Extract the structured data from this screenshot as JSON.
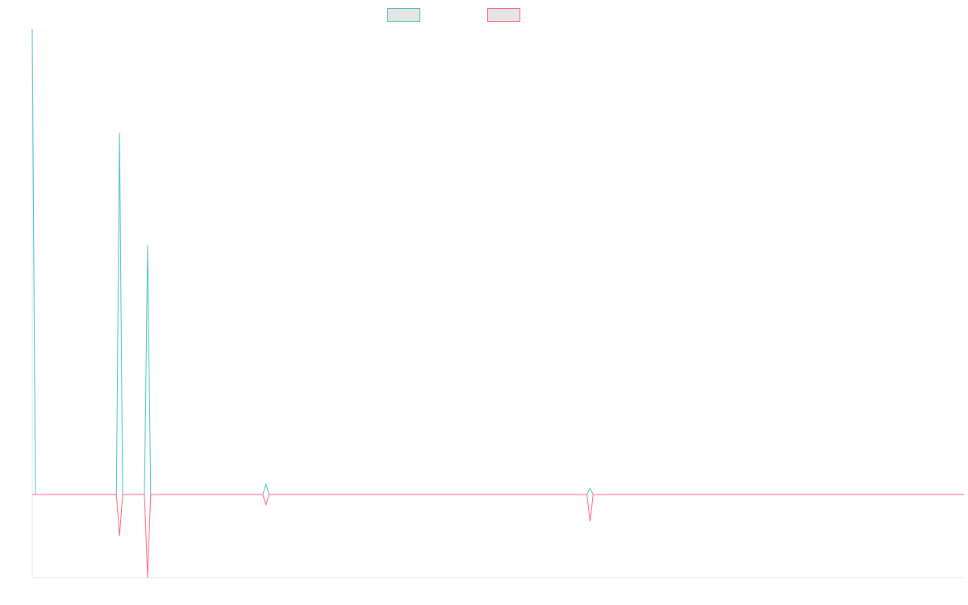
{
  "chart_data": {
    "type": "line",
    "title": "",
    "xlabel": "",
    "ylabel": "",
    "legend_position": "top-center",
    "grid": false,
    "x_count": 300,
    "ylim": [
      -20,
      112
    ],
    "series": [
      {
        "color": "#4bc0c0",
        "legend_fill": "#e5e5e5",
        "points": [
          [
            0,
            112
          ],
          [
            1,
            0
          ],
          [
            27,
            0
          ],
          [
            28,
            87
          ],
          [
            29,
            0
          ],
          [
            36,
            0
          ],
          [
            37,
            60
          ],
          [
            38,
            0
          ],
          [
            39,
            0
          ],
          [
            74,
            0
          ],
          [
            75,
            2.5
          ],
          [
            76,
            0
          ],
          [
            178,
            0
          ],
          [
            179,
            1.5
          ],
          [
            180,
            0
          ],
          [
            299,
            0
          ]
        ]
      },
      {
        "color": "#ff6384",
        "legend_fill": "#e5e5e5",
        "points": [
          [
            0,
            0
          ],
          [
            27,
            0
          ],
          [
            28,
            -10
          ],
          [
            29,
            0
          ],
          [
            36,
            0
          ],
          [
            37,
            -20
          ],
          [
            38,
            0
          ],
          [
            39,
            0
          ],
          [
            74,
            0
          ],
          [
            75,
            -2.5
          ],
          [
            76,
            0
          ],
          [
            178,
            0
          ],
          [
            179,
            -6.5
          ],
          [
            180,
            0
          ],
          [
            299,
            0
          ]
        ]
      }
    ]
  }
}
